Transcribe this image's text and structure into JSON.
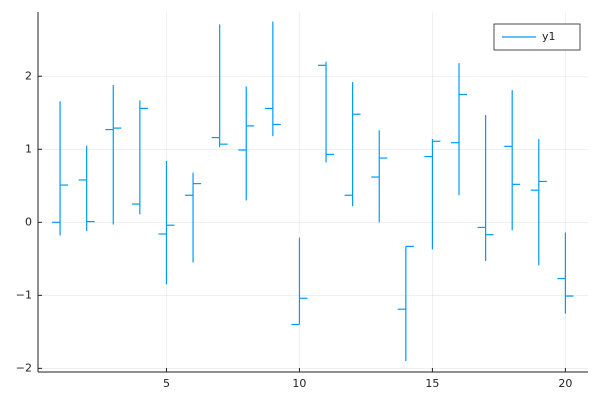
{
  "chart_data": {
    "type": "ohlc",
    "x": [
      1,
      2,
      3,
      4,
      5,
      6,
      7,
      8,
      9,
      10,
      11,
      12,
      13,
      14,
      15,
      16,
      17,
      18,
      19,
      20
    ],
    "series": [
      {
        "name": "y1",
        "color": "#009af9",
        "open": [
          0.0,
          0.58,
          1.27,
          0.25,
          -0.16,
          0.37,
          1.16,
          0.99,
          1.56,
          -1.4,
          2.15,
          0.37,
          0.62,
          -1.19,
          0.9,
          1.09,
          -0.07,
          1.04,
          0.44,
          -0.77
        ],
        "high": [
          1.66,
          1.05,
          1.88,
          1.67,
          0.84,
          0.68,
          2.71,
          1.86,
          2.75,
          -0.21,
          2.2,
          1.92,
          1.26,
          -0.33,
          1.14,
          2.18,
          1.47,
          1.81,
          1.14,
          -0.14
        ],
        "low": [
          -0.18,
          -0.12,
          -0.03,
          0.11,
          -0.85,
          -0.55,
          1.03,
          0.3,
          1.18,
          -1.4,
          0.82,
          0.22,
          0.0,
          -1.9,
          -0.37,
          0.37,
          -0.53,
          -0.11,
          -0.59,
          -1.25
        ],
        "close": [
          0.51,
          0.01,
          1.29,
          1.56,
          -0.04,
          0.53,
          1.07,
          1.32,
          1.34,
          -1.04,
          0.93,
          1.48,
          0.88,
          -0.33,
          1.11,
          1.75,
          -0.17,
          0.52,
          0.56,
          -1.01
        ]
      }
    ],
    "xlim": [
      0.17,
      20.85
    ],
    "xticks": [
      5,
      10,
      15,
      20
    ],
    "ylim": [
      -2.05,
      2.88
    ],
    "yticks": [
      {
        "value": -2,
        "label": "−2"
      },
      {
        "value": -1,
        "label": "−1"
      },
      0,
      1,
      2
    ],
    "grid": true,
    "legend": "top-right"
  }
}
